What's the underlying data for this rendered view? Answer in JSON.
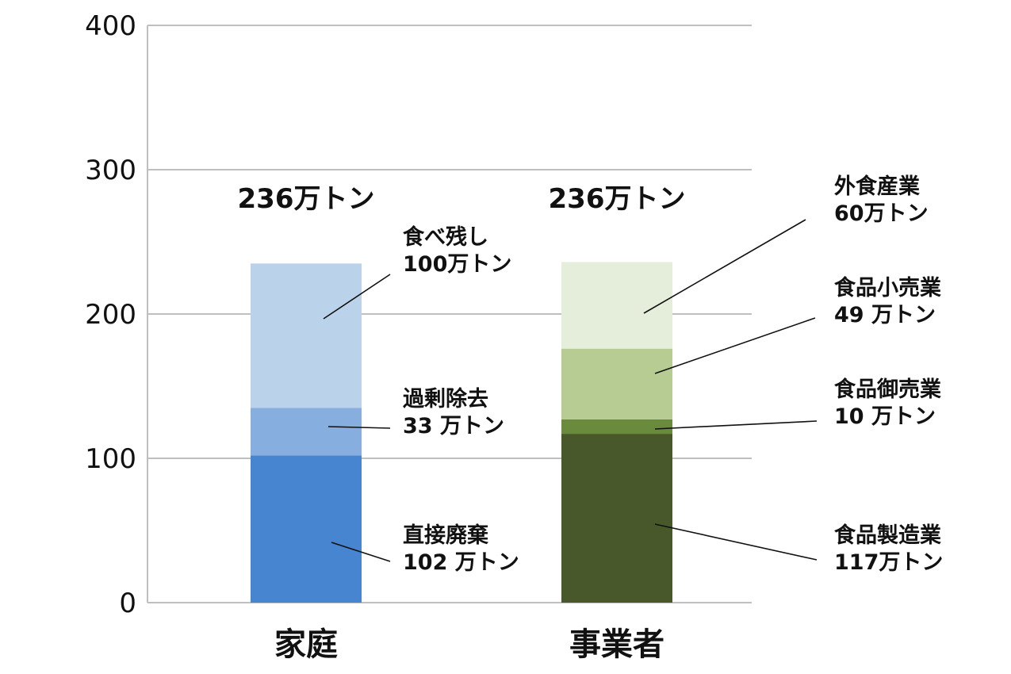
{
  "chart_data": {
    "type": "bar",
    "stacked": true,
    "title": "",
    "xlabel": "",
    "ylabel": "",
    "ylim": [
      0,
      400
    ],
    "yticks": [
      "0",
      "100",
      "200",
      "300",
      "400"
    ],
    "grid": true,
    "categories": [
      "家庭",
      "事業者"
    ],
    "totals": [
      "236万トン",
      "236万トン"
    ],
    "stacks": [
      {
        "category": "家庭",
        "segments": [
          {
            "name": "直接廃棄",
            "value": 102,
            "label": "102 万トン",
            "color": "#4785D0"
          },
          {
            "name": "過剰除去",
            "value": 33,
            "label": "33 万トン",
            "color": "#86AEDE"
          },
          {
            "name": "食べ残し",
            "value": 100,
            "label": "100万トン",
            "color": "#BBD3EA"
          }
        ]
      },
      {
        "category": "事業者",
        "segments": [
          {
            "name": "食品製造業",
            "value": 117,
            "label": "117万トン",
            "color": "#48582A"
          },
          {
            "name": "食品御売業",
            "value": 10,
            "label": "10 万トン",
            "color": "#6A8A3D"
          },
          {
            "name": "食品小売業",
            "value": 49,
            "label": "49 万トン",
            "color": "#B7CC93"
          },
          {
            "name": "外食産業",
            "value": 60,
            "label": "60万トン",
            "color": "#E5EDDB"
          }
        ]
      }
    ],
    "gridColor": "#bfbfbf",
    "axisColor": "#bfbfbf"
  }
}
